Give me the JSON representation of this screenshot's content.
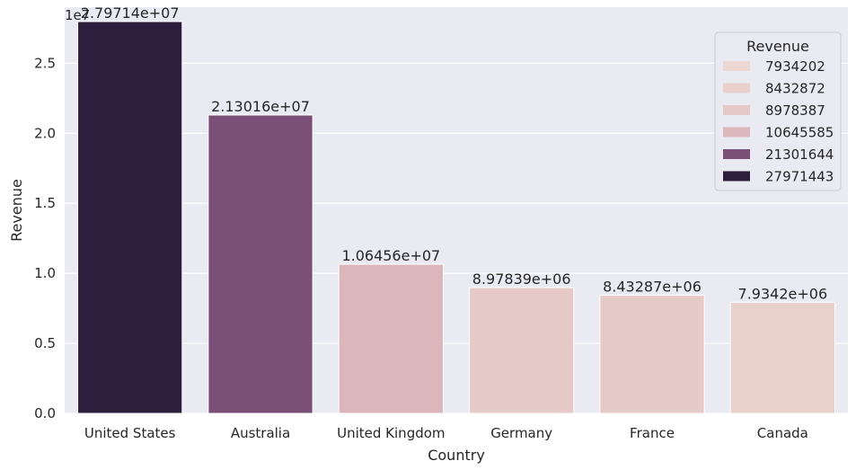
{
  "chart_data": {
    "type": "bar",
    "categories": [
      "United States",
      "Australia",
      "United Kingdom",
      "Germany",
      "France",
      "Canada"
    ],
    "values": [
      27971443,
      21301644,
      10645585,
      8978387,
      8432872,
      7934202
    ],
    "data_labels": [
      "2.79714e+07",
      "2.13016e+07",
      "1.06456e+07",
      "8.97839e+06",
      "8.43287e+06",
      "7.9342e+06"
    ],
    "xlabel": "Country",
    "ylabel": "Revenue",
    "ylim": [
      0,
      29000000
    ],
    "yticks": [
      0,
      5000000,
      10000000,
      15000000,
      20000000,
      25000000
    ],
    "ytick_labels": [
      "0.0",
      "0.5",
      "1.0",
      "1.5",
      "2.0",
      "2.5"
    ],
    "offset_text": "1e7",
    "grid": true,
    "background": "#eaeaf2",
    "bar_colors": [
      "#2d1e3e",
      "#7a5078",
      "#dbb6bb",
      "#e6cac7",
      "#e6cac7",
      "#e8d0cb"
    ],
    "legend": {
      "title": "Revenue",
      "placement": "top-right",
      "entries": [
        {
          "label": "7934202",
          "color": "#ecd7d2"
        },
        {
          "label": "8432872",
          "color": "#e9d0cb"
        },
        {
          "label": "8978387",
          "color": "#e6cac7"
        },
        {
          "label": "10645585",
          "color": "#dbb6bb"
        },
        {
          "label": "21301644",
          "color": "#7a5078"
        },
        {
          "label": "27971443",
          "color": "#2d1e3e"
        }
      ]
    }
  }
}
